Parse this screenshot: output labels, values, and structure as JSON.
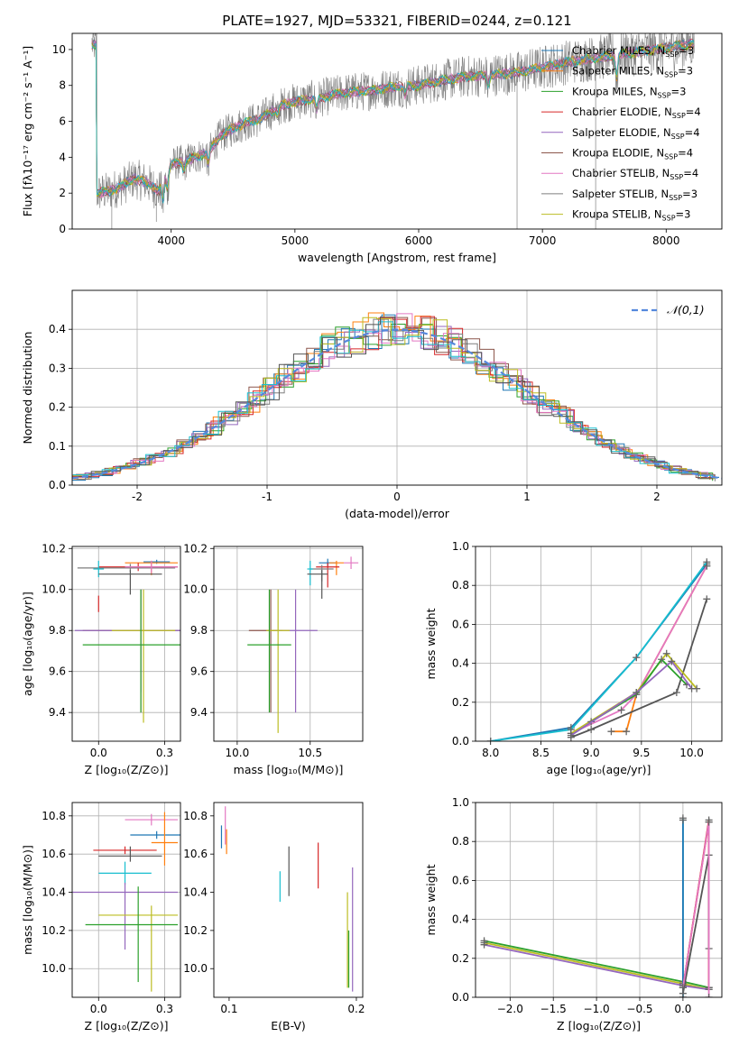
{
  "figure": {
    "title": "PLATE=1927, MJD=53321, FIBERID=0244, z=0.121"
  },
  "colors": {
    "chabrier_miles": "#1f77b4",
    "salpeter_miles": "#ff7f0e",
    "kroupa_miles": "#2ca02c",
    "chabrier_elodie": "#d62728",
    "salpeter_elodie": "#9467bd",
    "kroupa_elodie": "#8c564b",
    "chabrier_stelib": "#e377c2",
    "salpeter_stelib": "#7f7f7f",
    "kroupa_stelib": "#bcbd22",
    "extra": "#17becf",
    "spectrum_data": "#808080",
    "gaussian": "#5588dd"
  },
  "chart_data": [
    {
      "type": "line",
      "id": "spectrum",
      "title": "PLATE=1927, MJD=53321, FIBERID=0244, z=0.121",
      "xlabel": "wavelength [Angstrom, rest frame]",
      "ylabel": "Flux [fλ10⁻¹⁷ erg cm⁻² s⁻¹ A⁻¹]",
      "xlim": [
        3200,
        8450
      ],
      "ylim": [
        0,
        10.9
      ],
      "xticks": [
        4000,
        5000,
        6000,
        7000,
        8000
      ],
      "yticks": [
        0,
        2,
        4,
        6,
        8,
        10
      ],
      "grid": false,
      "legend_position": "upper right",
      "continuum": {
        "x": [
          3400,
          3500,
          3600,
          3700,
          3800,
          3900,
          4000,
          4100,
          4200,
          4300,
          4400,
          4500,
          4600,
          4700,
          4800,
          4900,
          5000,
          5200,
          5400,
          5600,
          5800,
          6000,
          6200,
          6400,
          6600,
          6800,
          7000,
          7200,
          7400,
          7600,
          7800,
          8000,
          8200
        ],
        "y": [
          2.0,
          2.1,
          2.4,
          2.8,
          2.6,
          2.1,
          3.6,
          3.8,
          4.0,
          4.3,
          5.2,
          5.6,
          5.9,
          6.1,
          6.5,
          6.9,
          7.1,
          7.3,
          7.6,
          7.7,
          7.9,
          8.0,
          8.3,
          8.5,
          8.6,
          8.7,
          9.0,
          9.3,
          9.5,
          9.7,
          9.9,
          10.1,
          10.3
        ]
      },
      "series": [
        {
          "name": "Chabrier MILES, N_SSP=3"
        },
        {
          "name": "Salpeter MILES, N_SSP=3"
        },
        {
          "name": "Kroupa MILES, N_SSP=3"
        },
        {
          "name": "Chabrier ELODIE, N_SSP=4"
        },
        {
          "name": "Salpeter ELODIE, N_SSP=4"
        },
        {
          "name": "Kroupa ELODIE, N_SSP=4"
        },
        {
          "name": "Chabrier STELIB, N_SSP=4"
        },
        {
          "name": "Salpeter STELIB, N_SSP=3"
        },
        {
          "name": "Kroupa STELIB, N_SSP=3"
        }
      ]
    },
    {
      "type": "bar",
      "id": "residuals",
      "xlabel": "(data-model)/error",
      "ylabel": "Normed distribution",
      "xlim": [
        -2.5,
        2.5
      ],
      "ylim": [
        0,
        0.5
      ],
      "xticks": [
        -2,
        -1,
        0,
        1,
        2
      ],
      "yticks": [
        0.0,
        0.1,
        0.2,
        0.3,
        0.4
      ],
      "grid": true,
      "legend": "𝒩(0,1)",
      "legend_position": "upper right",
      "gaussian": {
        "mean": 0,
        "sigma": 1
      }
    },
    {
      "type": "scatter",
      "id": "age_vs_Z",
      "xlabel": "Z [log₁₀(Z/Z⊙)]",
      "ylabel": "age [log₁₀(age/yr)]",
      "xlim": [
        -0.1,
        0.31
      ],
      "ylim": [
        9.26,
        10.21
      ],
      "xticks": [
        0.0,
        0.25
      ],
      "yticks": [
        9.4,
        9.6,
        9.8,
        10.0,
        10.2
      ],
      "grid": true,
      "errorbars": [
        {
          "color": "#1f77b4",
          "x": 0.22,
          "y": 10.135,
          "xerr": [
            0.05,
            0.05
          ],
          "yerr": [
            0.01,
            0.01
          ]
        },
        {
          "color": "#ff7f0e",
          "x": 0.2,
          "y": 10.13,
          "xerr": [
            0.1,
            0.1
          ],
          "yerr": [
            0.06,
            0.01
          ]
        },
        {
          "color": "#d62728",
          "x": 0.15,
          "y": 10.11,
          "xerr": [
            0.15,
            0.15
          ],
          "yerr": [
            0.02,
            0.02
          ]
        },
        {
          "color": "#7f7f7f",
          "x": 0.12,
          "y": 10.105,
          "xerr": [
            0.2,
            0.17
          ],
          "yerr": [
            0.02,
            0.02
          ]
        },
        {
          "color": "#e377c2",
          "x": 0.2,
          "y": 10.11,
          "xerr": [
            0.1,
            0.1
          ],
          "yerr": [
            0.03,
            0.03
          ]
        },
        {
          "color": "#17becf",
          "x": 0.0,
          "y": 10.1,
          "xerr": [
            0.02,
            0.02
          ],
          "yerr": [
            0.04,
            0.04
          ]
        },
        {
          "color": "#555555",
          "x": 0.12,
          "y": 10.075,
          "xerr": [
            0.12,
            0.12
          ],
          "yerr": [
            0.1,
            0.02
          ]
        },
        {
          "color": "#d62728",
          "x": 0.0,
          "y": 9.93,
          "xerr": [
            0,
            0
          ],
          "yerr": [
            0.04,
            0.04
          ]
        },
        {
          "color": "#8c564b",
          "x": 0.16,
          "y": 9.8,
          "xerr": [
            0.22,
            0.22
          ],
          "yerr": [
            0.4,
            0.2
          ]
        },
        {
          "color": "#9467bd",
          "x": 0.16,
          "y": 9.8,
          "xerr": [
            0.25,
            0.25
          ],
          "yerr": [
            0.3,
            0.2
          ]
        },
        {
          "color": "#bcbd22",
          "x": 0.17,
          "y": 9.8,
          "xerr": [
            0.12,
            0.12
          ],
          "yerr": [
            0.45,
            0.2
          ]
        },
        {
          "color": "#2ca02c",
          "x": 0.16,
          "y": 9.73,
          "xerr": [
            0.22,
            0.22
          ],
          "yerr": [
            0.33,
            0.27
          ]
        }
      ]
    },
    {
      "type": "scatter",
      "id": "age_vs_mass",
      "xlabel": "mass [log₁₀(M/M⊙)]",
      "ylabel": "",
      "xlim": [
        9.84,
        10.86
      ],
      "ylim": [
        9.26,
        10.21
      ],
      "xticks": [
        10.0,
        10.5
      ],
      "yticks": [
        9.4,
        9.6,
        9.8,
        10.0,
        10.2
      ],
      "grid": true,
      "errorbars": [
        {
          "color": "#1f77b4",
          "x": 10.62,
          "y": 10.13,
          "xerr": [
            0.06,
            0.06
          ],
          "yerr": [
            0.02,
            0.02
          ]
        },
        {
          "color": "#ff7f0e",
          "x": 10.68,
          "y": 10.13,
          "xerr": [
            0.05,
            0.05
          ],
          "yerr": [
            0.06,
            0.01
          ]
        },
        {
          "color": "#e377c2",
          "x": 10.78,
          "y": 10.13,
          "xerr": [
            0.05,
            0.05
          ],
          "yerr": [
            0.03,
            0.03
          ]
        },
        {
          "color": "#d62728",
          "x": 10.62,
          "y": 10.11,
          "xerr": [
            0.08,
            0.08
          ],
          "yerr": [
            0.1,
            0.02
          ]
        },
        {
          "color": "#7f7f7f",
          "x": 10.58,
          "y": 10.1,
          "xerr": [
            0.08,
            0.08
          ],
          "yerr": [
            0.06,
            0.02
          ]
        },
        {
          "color": "#17becf",
          "x": 10.5,
          "y": 10.1,
          "xerr": [
            0.02,
            0.02
          ],
          "yerr": [
            0.08,
            0.04
          ]
        },
        {
          "color": "#555555",
          "x": 10.58,
          "y": 10.075,
          "xerr": [
            0.1,
            0.04
          ],
          "yerr": [
            0.12,
            0.02
          ]
        },
        {
          "color": "#8c564b",
          "x": 10.23,
          "y": 9.8,
          "xerr": [
            0.15,
            0.08
          ],
          "yerr": [
            0.4,
            0.2
          ]
        },
        {
          "color": "#9467bd",
          "x": 10.4,
          "y": 9.8,
          "xerr": [
            0.15,
            0.15
          ],
          "yerr": [
            0.4,
            0.2
          ]
        },
        {
          "color": "#bcbd22",
          "x": 10.28,
          "y": 9.8,
          "xerr": [
            0.08,
            0.08
          ],
          "yerr": [
            0.5,
            0.2
          ]
        },
        {
          "color": "#2ca02c",
          "x": 10.22,
          "y": 9.73,
          "xerr": [
            0.15,
            0.15
          ],
          "yerr": [
            0.33,
            0.27
          ]
        }
      ]
    },
    {
      "type": "line",
      "id": "mass_weight_vs_age",
      "xlabel": "age [log₁₀(age/yr)]",
      "ylabel": "mass weight",
      "xlim": [
        7.85,
        10.3
      ],
      "ylim": [
        0,
        1.0
      ],
      "xticks": [
        8.0,
        8.5,
        9.0,
        9.5,
        10.0
      ],
      "yticks": [
        0.0,
        0.2,
        0.4,
        0.6,
        0.8,
        1.0
      ],
      "grid": true,
      "series": [
        {
          "color": "#1f77b4",
          "x": [
            8.0,
            8.8,
            9.45,
            10.15
          ],
          "y": [
            0.0,
            0.07,
            0.43,
            0.91
          ]
        },
        {
          "color": "#17becf",
          "x": [
            8.0,
            8.8,
            9.45,
            10.15
          ],
          "y": [
            0.0,
            0.06,
            0.43,
            0.92
          ]
        },
        {
          "color": "#ff7f0e",
          "x": [
            9.2,
            9.35,
            9.45,
            10.15
          ],
          "y": [
            0.05,
            0.05,
            0.24,
            0.9
          ]
        },
        {
          "color": "#e377c2",
          "x": [
            8.8,
            9.3,
            9.45,
            10.15
          ],
          "y": [
            0.04,
            0.16,
            0.24,
            0.9
          ]
        },
        {
          "color": "#555555",
          "x": [
            8.8,
            9.0,
            9.85,
            10.15
          ],
          "y": [
            0.02,
            0.06,
            0.25,
            0.73
          ]
        },
        {
          "color": "#bcbd22",
          "x": [
            8.8,
            9.45,
            9.75,
            10.05
          ],
          "y": [
            0.04,
            0.25,
            0.45,
            0.27
          ]
        },
        {
          "color": "#2ca02c",
          "x": [
            9.0,
            9.45,
            9.7,
            9.95
          ],
          "y": [
            0.1,
            0.24,
            0.42,
            0.29
          ]
        },
        {
          "color": "#9467bd",
          "x": [
            8.8,
            9.45,
            9.8,
            10.0
          ],
          "y": [
            0.03,
            0.25,
            0.41,
            0.27
          ]
        }
      ]
    },
    {
      "type": "scatter",
      "id": "mass_vs_Z",
      "xlabel": "Z [log₁₀(Z/Z⊙)]",
      "ylabel": "mass [log₁₀(M/M⊙)]",
      "xlim": [
        -0.1,
        0.31
      ],
      "ylim": [
        9.85,
        10.87
      ],
      "xticks": [
        0.0,
        0.25
      ],
      "yticks": [
        10.0,
        10.2,
        10.4,
        10.6,
        10.8
      ],
      "grid": true,
      "errorbars": [
        {
          "color": "#e377c2",
          "x": 0.2,
          "y": 10.78,
          "xerr": [
            0.1,
            0.1
          ],
          "yerr": [
            0.03,
            0.03
          ]
        },
        {
          "color": "#1f77b4",
          "x": 0.22,
          "y": 10.7,
          "xerr": [
            0.1,
            0.1
          ],
          "yerr": [
            0.02,
            0.02
          ]
        },
        {
          "color": "#ff7f0e",
          "x": 0.25,
          "y": 10.66,
          "xerr": [
            0.05,
            0.05
          ],
          "yerr": [
            0.12,
            0.16
          ]
        },
        {
          "color": "#d62728",
          "x": 0.1,
          "y": 10.62,
          "xerr": [
            0.12,
            0.12
          ],
          "yerr": [
            0.02,
            0.02
          ]
        },
        {
          "color": "#555555",
          "x": 0.12,
          "y": 10.59,
          "xerr": [
            0.12,
            0.12
          ],
          "yerr": [
            0.03,
            0.05
          ]
        },
        {
          "color": "#17becf",
          "x": 0.1,
          "y": 10.5,
          "xerr": [
            0.1,
            0.1
          ],
          "yerr": [
            0.06,
            0.06
          ]
        },
        {
          "color": "#9467bd",
          "x": 0.1,
          "y": 10.4,
          "xerr": [
            0.2,
            0.2
          ],
          "yerr": [
            0.3,
            0.05
          ]
        },
        {
          "color": "#bcbd22",
          "x": 0.2,
          "y": 10.28,
          "xerr": [
            0.2,
            0.1
          ],
          "yerr": [
            0.4,
            0.05
          ]
        },
        {
          "color": "#2ca02c",
          "x": 0.15,
          "y": 10.23,
          "xerr": [
            0.2,
            0.15
          ],
          "yerr": [
            0.3,
            0.2
          ]
        }
      ]
    },
    {
      "type": "scatter",
      "id": "mass_vs_ebv",
      "xlabel": "E(B-V)",
      "ylabel": "",
      "xlim": [
        0.088,
        0.205
      ],
      "ylim": [
        9.85,
        10.87
      ],
      "xticks": [
        0.1,
        0.2
      ],
      "yticks": [
        10.0,
        10.2,
        10.4,
        10.6,
        10.8
      ],
      "grid": false,
      "errorbars": [
        {
          "color": "#1f77b4",
          "x": 0.094,
          "y": 10.69,
          "xerr": [
            0,
            0
          ],
          "yerr": [
            0.06,
            0.06
          ]
        },
        {
          "color": "#e377c2",
          "x": 0.097,
          "y": 10.75,
          "xerr": [
            0,
            0
          ],
          "yerr": [
            0.1,
            0.1
          ]
        },
        {
          "color": "#ff7f0e",
          "x": 0.098,
          "y": 10.66,
          "xerr": [
            0,
            0
          ],
          "yerr": [
            0.06,
            0.07
          ]
        },
        {
          "color": "#555555",
          "x": 0.147,
          "y": 10.51,
          "xerr": [
            0,
            0
          ],
          "yerr": [
            0.13,
            0.13
          ]
        },
        {
          "color": "#17becf",
          "x": 0.14,
          "y": 10.43,
          "xerr": [
            0,
            0
          ],
          "yerr": [
            0.08,
            0.08
          ]
        },
        {
          "color": "#d62728",
          "x": 0.17,
          "y": 10.54,
          "xerr": [
            0,
            0
          ],
          "yerr": [
            0.12,
            0.12
          ]
        },
        {
          "color": "#9467bd",
          "x": 0.197,
          "y": 10.2,
          "xerr": [
            0,
            0
          ],
          "yerr": [
            0.32,
            0.33
          ]
        },
        {
          "color": "#bcbd22",
          "x": 0.193,
          "y": 10.1,
          "xerr": [
            0,
            0
          ],
          "yerr": [
            0.2,
            0.3
          ]
        },
        {
          "color": "#2ca02c",
          "x": 0.194,
          "y": 10.05,
          "xerr": [
            0,
            0
          ],
          "yerr": [
            0.15,
            0.15
          ]
        }
      ]
    },
    {
      "type": "line",
      "id": "mass_weight_vs_Z",
      "xlabel": "Z [log₁₀(Z/Z⊙)]",
      "ylabel": "mass weight",
      "xlim": [
        -2.4,
        0.45
      ],
      "ylim": [
        0,
        1.0
      ],
      "xticks": [
        -2.0,
        -1.5,
        -1.0,
        -0.5,
        0.0
      ],
      "yticks": [
        0.0,
        0.2,
        0.4,
        0.6,
        0.8,
        1.0
      ],
      "grid": true,
      "series": [
        {
          "color": "#2ca02c",
          "x": [
            -2.3,
            0.0,
            0.3
          ],
          "y": [
            0.29,
            0.08,
            0.05
          ]
        },
        {
          "color": "#bcbd22",
          "x": [
            -2.3,
            0.0,
            0.3
          ],
          "y": [
            0.28,
            0.07,
            0.04
          ]
        },
        {
          "color": "#9467bd",
          "x": [
            -2.3,
            0.0,
            0.3
          ],
          "y": [
            0.27,
            0.06,
            0.04
          ]
        },
        {
          "color": "#17becf",
          "x": [
            0.0,
            0.0,
            0.0
          ],
          "y": [
            0.92,
            0.05,
            0.0
          ]
        },
        {
          "color": "#1f77b4",
          "x": [
            0.0,
            0.0
          ],
          "y": [
            0.91,
            0.0
          ]
        },
        {
          "color": "#ff7f0e",
          "x": [
            0.0,
            0.3,
            0.3
          ],
          "y": [
            0.05,
            0.9,
            0.05
          ]
        },
        {
          "color": "#d62728",
          "x": [
            0.0,
            0.3,
            0.3
          ],
          "y": [
            0.05,
            0.91,
            0.05
          ]
        },
        {
          "color": "#555555",
          "x": [
            0.0,
            0.3,
            0.3
          ],
          "y": [
            0.02,
            0.73,
            0.25
          ]
        },
        {
          "color": "#e377c2",
          "x": [
            0.0,
            0.3,
            0.3
          ],
          "y": [
            0.05,
            0.9,
            0.0
          ]
        }
      ]
    }
  ]
}
